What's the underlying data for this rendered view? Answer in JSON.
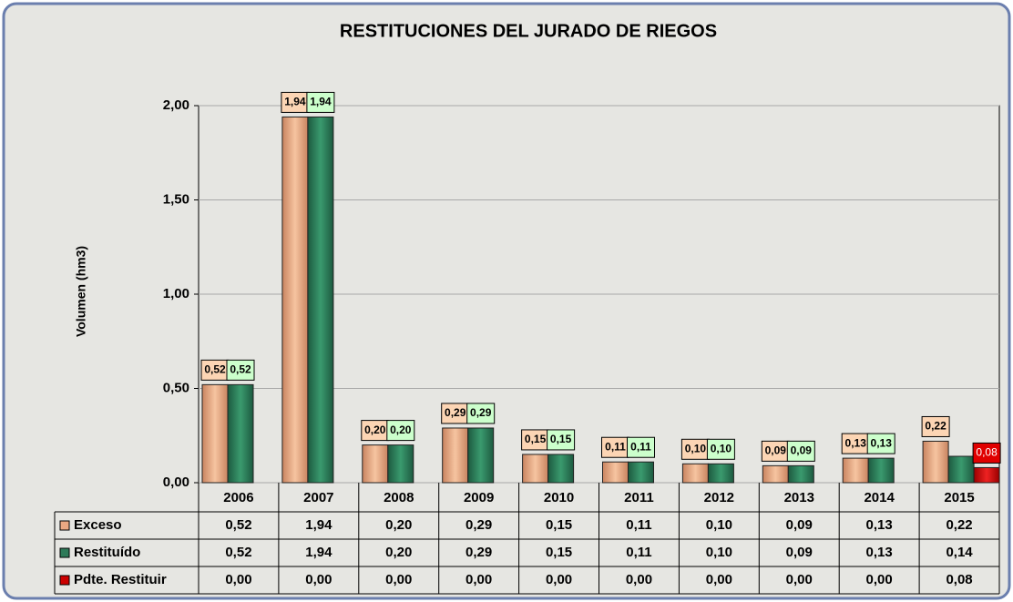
{
  "chart_data": {
    "type": "bar",
    "title": "RESTITUCIONES DEL JURADO DE RIEGOS",
    "y_label": "Volumen (hm3)",
    "categories": [
      "2006",
      "2007",
      "2008",
      "2009",
      "2010",
      "2011",
      "2012",
      "2013",
      "2014",
      "2015"
    ],
    "series": [
      {
        "name": "Exceso",
        "color": "#eba882",
        "values": [
          0.52,
          1.94,
          0.2,
          0.29,
          0.15,
          0.11,
          0.1,
          0.09,
          0.13,
          0.22
        ],
        "value_labels": [
          "0,52",
          "1,94",
          "0,20",
          "0,29",
          "0,15",
          "0,11",
          "0,10",
          "0,09",
          "0,13",
          "0,22"
        ]
      },
      {
        "name": "Restituído",
        "color": "#2d7a58",
        "values": [
          0.52,
          1.94,
          0.2,
          0.29,
          0.15,
          0.11,
          0.1,
          0.09,
          0.13,
          0.14
        ],
        "value_labels": [
          "0,52",
          "1,94",
          "0,20",
          "0,29",
          "0,15",
          "0,11",
          "0,10",
          "0,09",
          "0,13",
          "0,14"
        ]
      },
      {
        "name": "Pdte. Restituir",
        "color": "#cc0000",
        "values": [
          0,
          0,
          0,
          0,
          0,
          0,
          0,
          0,
          0,
          0.08
        ],
        "value_labels": [
          "0,00",
          "0,00",
          "0,00",
          "0,00",
          "0,00",
          "0,00",
          "0,00",
          "0,00",
          "0,00",
          "0,08"
        ]
      }
    ],
    "ylim": [
      0,
      2
    ],
    "yticks": [
      {
        "value": 0,
        "label": "0,00"
      },
      {
        "value": 0.5,
        "label": "0,50"
      },
      {
        "value": 1,
        "label": "1,00"
      },
      {
        "value": 1.5,
        "label": "1,50"
      },
      {
        "value": 2,
        "label": "2,00"
      }
    ],
    "grid": true
  }
}
